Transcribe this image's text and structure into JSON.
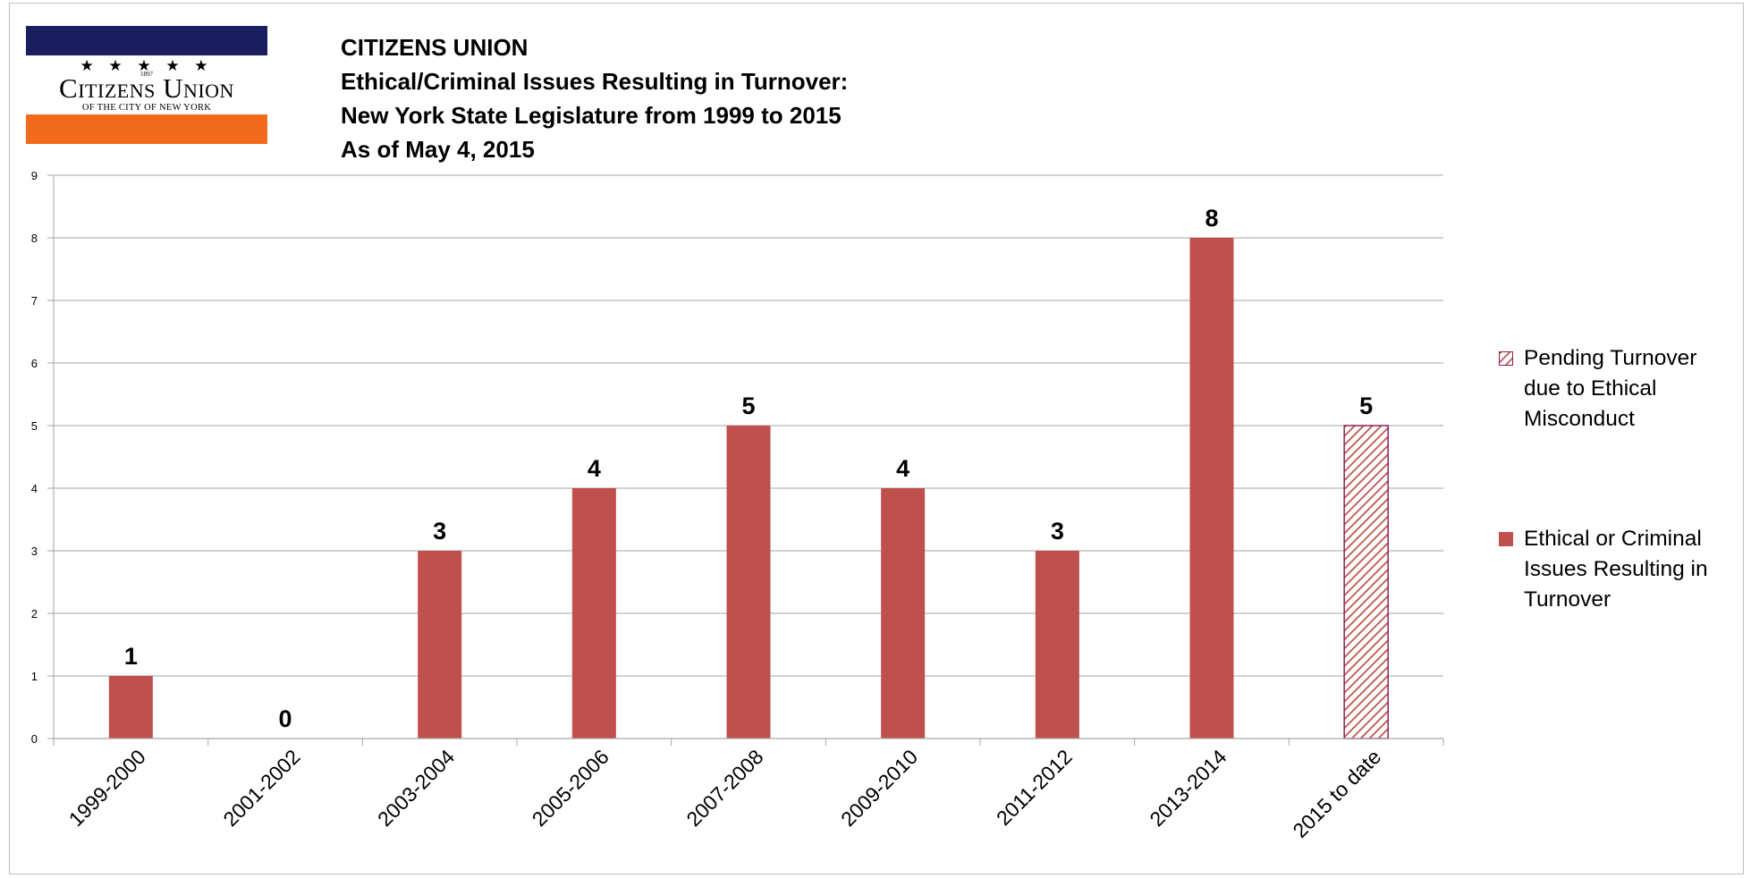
{
  "logo": {
    "stars": "★ ★ ★ ★ ★",
    "year": "1897",
    "wordmark": "Citizens Union",
    "subtitle": "OF THE CITY OF NEW YORK"
  },
  "titles": {
    "line1": "CITIZENS UNION",
    "line2": "Ethical/Criminal Issues Resulting in Turnover:",
    "line3": "New York State Legislature from 1999 to 2015",
    "line4": "As of May 4, 2015"
  },
  "colors": {
    "bar": "#c0504d",
    "grid": "#a6a6a6",
    "hatch_border": "#8b2252"
  },
  "chart_data": {
    "type": "bar",
    "title": "Ethical/Criminal Issues Resulting in Turnover: New York State Legislature from 1999 to 2015",
    "categories": [
      "1999-2000",
      "2001-2002",
      "2003-2004",
      "2005-2006",
      "2007-2008",
      "2009-2010",
      "2011-2012",
      "2013-2014",
      "2015 to date"
    ],
    "series": [
      {
        "name": "Ethical or Criminal Issues Resulting in Turnover",
        "values": [
          1,
          0,
          3,
          4,
          5,
          4,
          3,
          8,
          null
        ]
      },
      {
        "name": "Pending Turnover due to Ethical Misconduct",
        "values": [
          null,
          null,
          null,
          null,
          null,
          null,
          null,
          null,
          5
        ]
      }
    ],
    "data_labels": [
      "1",
      "0",
      "3",
      "4",
      "5",
      "4",
      "3",
      "8",
      "5"
    ],
    "ylim": [
      0,
      9
    ],
    "yticks": [
      "0",
      "1",
      "2",
      "3",
      "4",
      "5",
      "6",
      "7",
      "8",
      "9"
    ],
    "grid": true,
    "legend_position": "right"
  },
  "legend": {
    "pending": "Pending Turnover due to Ethical Misconduct",
    "ethical": "Ethical or Criminal Issues Resulting in Turnover"
  }
}
